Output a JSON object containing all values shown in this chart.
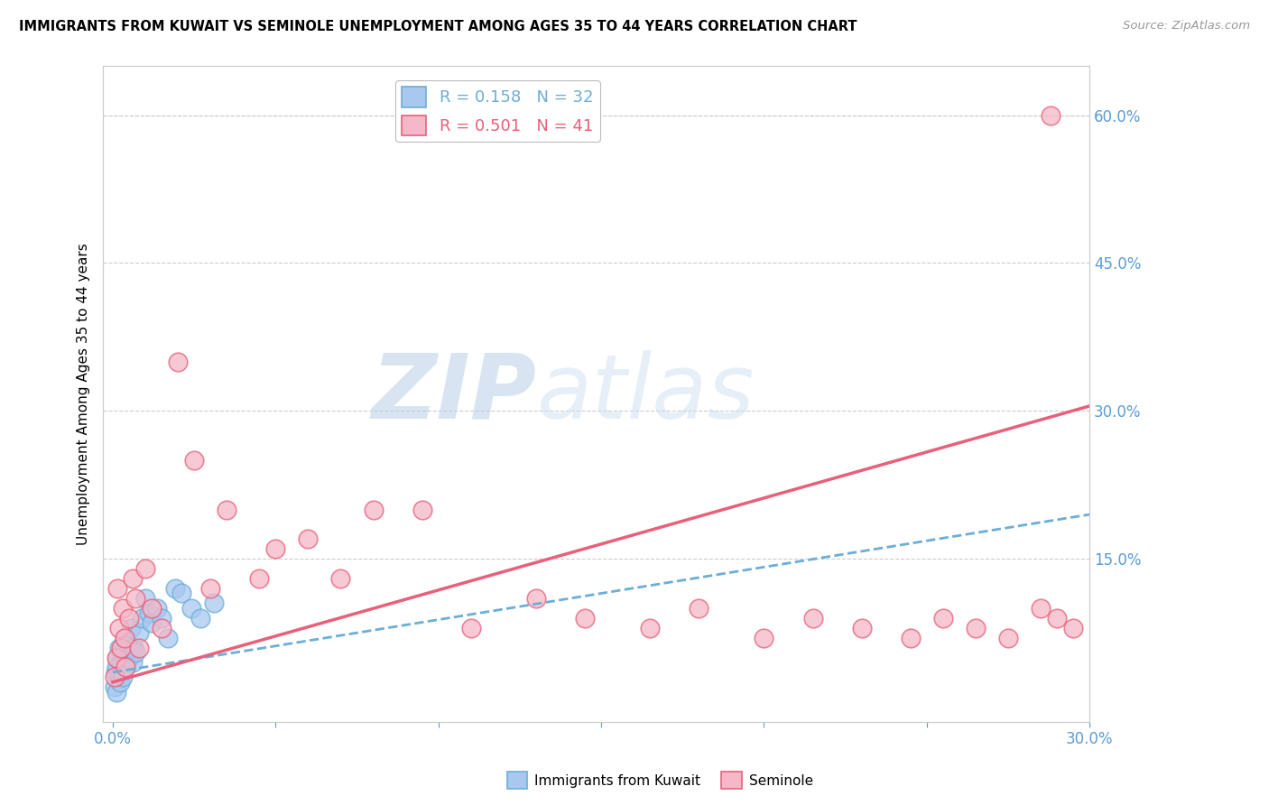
{
  "title": "IMMIGRANTS FROM KUWAIT VS SEMINOLE UNEMPLOYMENT AMONG AGES 35 TO 44 YEARS CORRELATION CHART",
  "source": "Source: ZipAtlas.com",
  "ylabel": "Unemployment Among Ages 35 to 44 years",
  "x_tick_labels": [
    "0.0%",
    "",
    "",
    "",
    "",
    "",
    "30.0%"
  ],
  "x_tick_vals": [
    0.0,
    5.0,
    10.0,
    15.0,
    20.0,
    25.0,
    30.0
  ],
  "y_tick_labels_right": [
    "15.0%",
    "30.0%",
    "45.0%",
    "60.0%"
  ],
  "y_tick_vals_right": [
    15.0,
    30.0,
    45.0,
    60.0
  ],
  "xlim": [
    -0.3,
    30.0
  ],
  "ylim": [
    -1.5,
    65.0
  ],
  "r_kuwait": 0.158,
  "n_kuwait": 32,
  "r_seminole": 0.501,
  "n_seminole": 41,
  "color_kuwait": "#a8c8f0",
  "color_seminole": "#f5b8c8",
  "color_kuwait_line": "#6baed6",
  "color_seminole_line": "#e8607a",
  "color_axis_labels": "#5b9bd5",
  "watermark_zip": "ZIP",
  "watermark_atlas": "atlas",
  "legend_label_kuwait": "Immigrants from Kuwait",
  "legend_label_seminole": "Seminole",
  "kuwait_scatter_x": [
    0.05,
    0.08,
    0.1,
    0.12,
    0.15,
    0.18,
    0.2,
    0.22,
    0.25,
    0.28,
    0.3,
    0.35,
    0.4,
    0.45,
    0.5,
    0.55,
    0.6,
    0.65,
    0.7,
    0.8,
    0.9,
    1.0,
    1.1,
    1.2,
    1.35,
    1.5,
    1.7,
    1.9,
    2.1,
    2.4,
    2.7,
    3.1
  ],
  "kuwait_scatter_y": [
    2.0,
    3.5,
    1.5,
    4.0,
    5.0,
    3.0,
    6.0,
    2.5,
    4.5,
    5.5,
    3.0,
    7.0,
    4.0,
    6.5,
    5.0,
    8.0,
    4.5,
    6.0,
    5.5,
    7.5,
    9.0,
    11.0,
    9.5,
    8.5,
    10.0,
    9.0,
    7.0,
    12.0,
    11.5,
    10.0,
    9.0,
    10.5
  ],
  "seminole_scatter_x": [
    0.05,
    0.1,
    0.15,
    0.2,
    0.25,
    0.3,
    0.35,
    0.4,
    0.5,
    0.6,
    0.7,
    0.8,
    1.0,
    1.2,
    1.5,
    2.0,
    2.5,
    3.0,
    3.5,
    4.5,
    5.0,
    6.0,
    7.0,
    8.0,
    9.5,
    11.0,
    13.0,
    14.5,
    16.5,
    18.0,
    20.0,
    21.5,
    23.0,
    24.5,
    25.5,
    26.5,
    27.5,
    28.5,
    29.0,
    29.5,
    28.8
  ],
  "seminole_scatter_y": [
    3.0,
    5.0,
    12.0,
    8.0,
    6.0,
    10.0,
    7.0,
    4.0,
    9.0,
    13.0,
    11.0,
    6.0,
    14.0,
    10.0,
    8.0,
    35.0,
    25.0,
    12.0,
    20.0,
    13.0,
    16.0,
    17.0,
    13.0,
    20.0,
    20.0,
    8.0,
    11.0,
    9.0,
    8.0,
    10.0,
    7.0,
    9.0,
    8.0,
    7.0,
    9.0,
    8.0,
    7.0,
    10.0,
    9.0,
    8.0,
    60.0
  ],
  "kuwait_trend_x": [
    0.0,
    30.0
  ],
  "kuwait_trend_y": [
    3.5,
    19.5
  ],
  "seminole_trend_x": [
    0.0,
    30.0
  ],
  "seminole_trend_y": [
    2.5,
    30.5
  ],
  "grid_color": "#cccccc",
  "grid_color_horizontal": "#cccccc",
  "background_color": "#ffffff"
}
